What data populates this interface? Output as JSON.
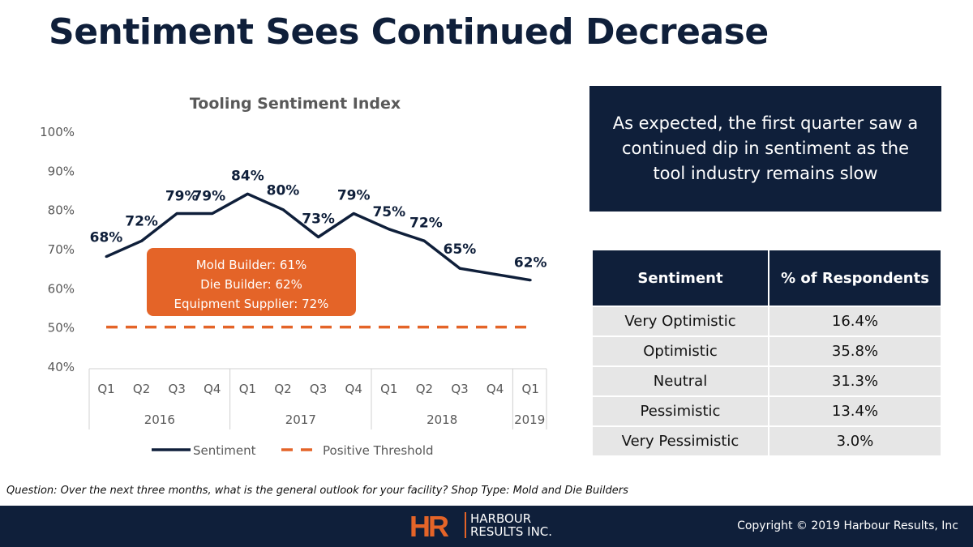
{
  "slide": {
    "title": "Sentiment Sees Continued Decrease",
    "callout": "As expected, the first quarter saw a continued dip in sentiment as the tool industry remains slow",
    "question": "Question: Over the next three months, what is the general outlook for your facility? Shop Type: Mold and Die Builders"
  },
  "table": {
    "headers": [
      "Sentiment",
      "% of Respondents"
    ],
    "rows": [
      [
        "Very Optimistic",
        "16.4%"
      ],
      [
        "Optimistic",
        "35.8%"
      ],
      [
        "Neutral",
        "31.3%"
      ],
      [
        "Pessimistic",
        "13.4%"
      ],
      [
        "Very Pessimistic",
        "3.0%"
      ]
    ]
  },
  "footer": {
    "logo_mark": "HR",
    "logo_line1": "HARBOUR",
    "logo_line2": "RESULTS INC.",
    "copyright": "Copyright © 2019 Harbour Results, Inc"
  },
  "colors": {
    "navy": "#0f1f3a",
    "orange": "#e46428",
    "table_row": "#e6e6e6"
  },
  "chart_data": {
    "type": "line",
    "title": "Tooling Sentiment Index",
    "quarters": [
      "Q1",
      "Q2",
      "Q3",
      "Q4",
      "Q1",
      "Q2",
      "Q3",
      "Q4",
      "Q1",
      "Q2",
      "Q3",
      "Q4",
      "Q1"
    ],
    "years": [
      {
        "label": "2016",
        "span": 4
      },
      {
        "label": "2017",
        "span": 4
      },
      {
        "label": "2018",
        "span": 4
      },
      {
        "label": "2019",
        "span": 1
      }
    ],
    "series": [
      {
        "name": "Sentiment",
        "values": [
          68,
          72,
          79,
          79,
          84,
          80,
          73,
          79,
          75,
          72,
          65,
          63.5,
          62
        ],
        "labels": [
          "68%",
          "72%",
          "79%",
          "79%",
          "84%",
          "80%",
          "73%",
          "79%",
          "75%",
          "72%",
          "65%",
          "",
          "62%"
        ]
      },
      {
        "name": "Positive Threshold",
        "values": [
          50,
          50,
          50,
          50,
          50,
          50,
          50,
          50,
          50,
          50,
          50,
          50,
          50
        ]
      }
    ],
    "ylim": [
      40,
      100
    ],
    "yticks": [
      "40%",
      "50%",
      "60%",
      "70%",
      "80%",
      "90%",
      "100%"
    ],
    "annotation": [
      "Mold Builder: 61%",
      "Die Builder: 62%",
      "Equipment Supplier: 72%"
    ],
    "legend": "bottom"
  }
}
